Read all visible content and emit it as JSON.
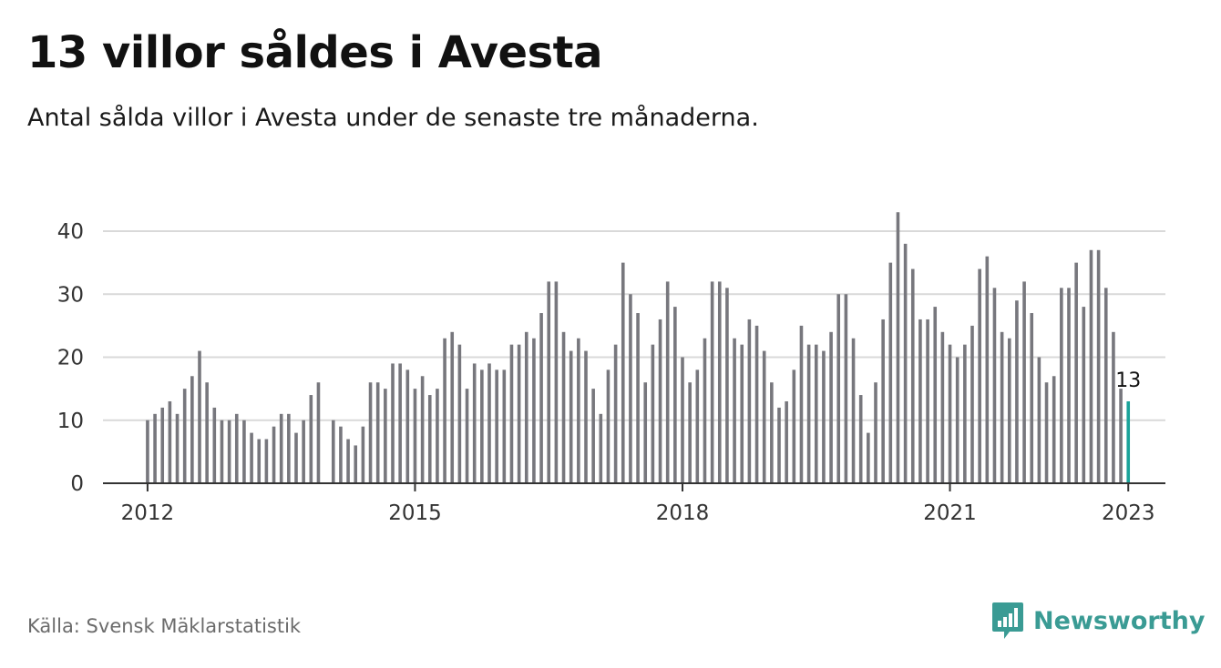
{
  "header": {
    "title": "13 villor såldes i Avesta",
    "subtitle": "Antal sålda villor i Avesta under de senaste tre månaderna."
  },
  "footer": {
    "source": "Källa: Svensk Mäklarstatistik",
    "logo_text": "Newsworthy"
  },
  "colors": {
    "bar": "#77777d",
    "highlight": "#1aa39a",
    "grid": "#d9d9d9",
    "axis": "#333333",
    "brand": "#3a9b94"
  },
  "chart_data": {
    "type": "bar",
    "title": "13 villor såldes i Avesta",
    "subtitle": "Antal sålda villor i Avesta under de senaste tre månaderna.",
    "xlabel": "",
    "ylabel": "",
    "x_range": [
      "2011-07",
      "2023-06"
    ],
    "ylim": [
      0,
      45
    ],
    "yticks": [
      0,
      10,
      20,
      30,
      40
    ],
    "xticks": [
      {
        "label": "2012",
        "date": "2012-01"
      },
      {
        "label": "2015",
        "date": "2015-01"
      },
      {
        "label": "2018",
        "date": "2018-01"
      },
      {
        "label": "2021",
        "date": "2021-01"
      },
      {
        "label": "2023",
        "date": "2023-01"
      }
    ],
    "grid": true,
    "highlight": {
      "date": "2023-01",
      "value": 13,
      "label": "13"
    },
    "series": [
      {
        "points": [
          [
            "2012-01",
            10
          ],
          [
            "2012-02",
            11
          ],
          [
            "2012-03",
            12
          ],
          [
            "2012-04",
            13
          ],
          [
            "2012-05",
            11
          ],
          [
            "2012-06",
            15
          ],
          [
            "2012-07",
            17
          ],
          [
            "2012-08",
            21
          ],
          [
            "2012-09",
            16
          ],
          [
            "2012-10",
            12
          ],
          [
            "2012-11",
            10
          ],
          [
            "2012-12",
            10
          ],
          [
            "2013-01",
            11
          ],
          [
            "2013-02",
            10
          ],
          [
            "2013-03",
            8
          ],
          [
            "2013-04",
            7
          ],
          [
            "2013-05",
            7
          ],
          [
            "2013-06",
            9
          ],
          [
            "2013-07",
            11
          ],
          [
            "2013-08",
            11
          ],
          [
            "2013-09",
            8
          ],
          [
            "2013-10",
            10
          ],
          [
            "2013-11",
            14
          ],
          [
            "2013-12",
            16
          ],
          [
            "2014-02",
            10
          ],
          [
            "2014-03",
            9
          ],
          [
            "2014-04",
            7
          ],
          [
            "2014-05",
            6
          ],
          [
            "2014-06",
            9
          ],
          [
            "2014-07",
            16
          ],
          [
            "2014-08",
            16
          ],
          [
            "2014-09",
            15
          ],
          [
            "2014-10",
            19
          ],
          [
            "2014-11",
            19
          ],
          [
            "2014-12",
            18
          ],
          [
            "2015-01",
            15
          ],
          [
            "2015-02",
            17
          ],
          [
            "2015-03",
            14
          ],
          [
            "2015-04",
            15
          ],
          [
            "2015-05",
            23
          ],
          [
            "2015-06",
            24
          ],
          [
            "2015-07",
            22
          ],
          [
            "2015-08",
            15
          ],
          [
            "2015-09",
            19
          ],
          [
            "2015-10",
            18
          ],
          [
            "2015-11",
            19
          ],
          [
            "2015-12",
            18
          ],
          [
            "2016-01",
            18
          ],
          [
            "2016-02",
            22
          ],
          [
            "2016-03",
            22
          ],
          [
            "2016-04",
            24
          ],
          [
            "2016-05",
            23
          ],
          [
            "2016-06",
            27
          ],
          [
            "2016-07",
            32
          ],
          [
            "2016-08",
            32
          ],
          [
            "2016-09",
            24
          ],
          [
            "2016-10",
            21
          ],
          [
            "2016-11",
            23
          ],
          [
            "2016-12",
            21
          ],
          [
            "2017-01",
            15
          ],
          [
            "2017-02",
            11
          ],
          [
            "2017-03",
            18
          ],
          [
            "2017-04",
            22
          ],
          [
            "2017-05",
            35
          ],
          [
            "2017-06",
            30
          ],
          [
            "2017-07",
            27
          ],
          [
            "2017-08",
            16
          ],
          [
            "2017-09",
            22
          ],
          [
            "2017-10",
            26
          ],
          [
            "2017-11",
            32
          ],
          [
            "2017-12",
            28
          ],
          [
            "2018-01",
            20
          ],
          [
            "2018-02",
            16
          ],
          [
            "2018-03",
            18
          ],
          [
            "2018-04",
            23
          ],
          [
            "2018-05",
            32
          ],
          [
            "2018-06",
            32
          ],
          [
            "2018-07",
            31
          ],
          [
            "2018-08",
            23
          ],
          [
            "2018-09",
            22
          ],
          [
            "2018-10",
            26
          ],
          [
            "2018-11",
            25
          ],
          [
            "2018-12",
            21
          ],
          [
            "2019-01",
            16
          ],
          [
            "2019-02",
            12
          ],
          [
            "2019-03",
            13
          ],
          [
            "2019-04",
            18
          ],
          [
            "2019-05",
            25
          ],
          [
            "2019-06",
            22
          ],
          [
            "2019-07",
            22
          ],
          [
            "2019-08",
            21
          ],
          [
            "2019-09",
            24
          ],
          [
            "2019-10",
            30
          ],
          [
            "2019-11",
            30
          ],
          [
            "2019-12",
            23
          ],
          [
            "2020-01",
            14
          ],
          [
            "2020-02",
            8
          ],
          [
            "2020-03",
            16
          ],
          [
            "2020-04",
            26
          ],
          [
            "2020-05",
            35
          ],
          [
            "2020-06",
            43
          ],
          [
            "2020-07",
            38
          ],
          [
            "2020-08",
            34
          ],
          [
            "2020-09",
            26
          ],
          [
            "2020-10",
            26
          ],
          [
            "2020-11",
            28
          ],
          [
            "2020-12",
            24
          ],
          [
            "2021-01",
            22
          ],
          [
            "2021-02",
            20
          ],
          [
            "2021-03",
            22
          ],
          [
            "2021-04",
            25
          ],
          [
            "2021-05",
            34
          ],
          [
            "2021-06",
            36
          ],
          [
            "2021-07",
            31
          ],
          [
            "2021-08",
            24
          ],
          [
            "2021-09",
            23
          ],
          [
            "2021-10",
            29
          ],
          [
            "2021-11",
            32
          ],
          [
            "2021-12",
            27
          ],
          [
            "2022-01",
            20
          ],
          [
            "2022-02",
            16
          ],
          [
            "2022-03",
            17
          ],
          [
            "2022-04",
            31
          ],
          [
            "2022-05",
            31
          ],
          [
            "2022-06",
            35
          ],
          [
            "2022-07",
            28
          ],
          [
            "2022-08",
            37
          ],
          [
            "2022-09",
            37
          ],
          [
            "2022-10",
            31
          ],
          [
            "2022-11",
            24
          ],
          [
            "2022-12",
            15
          ],
          [
            "2023-01",
            13
          ]
        ]
      }
    ]
  }
}
